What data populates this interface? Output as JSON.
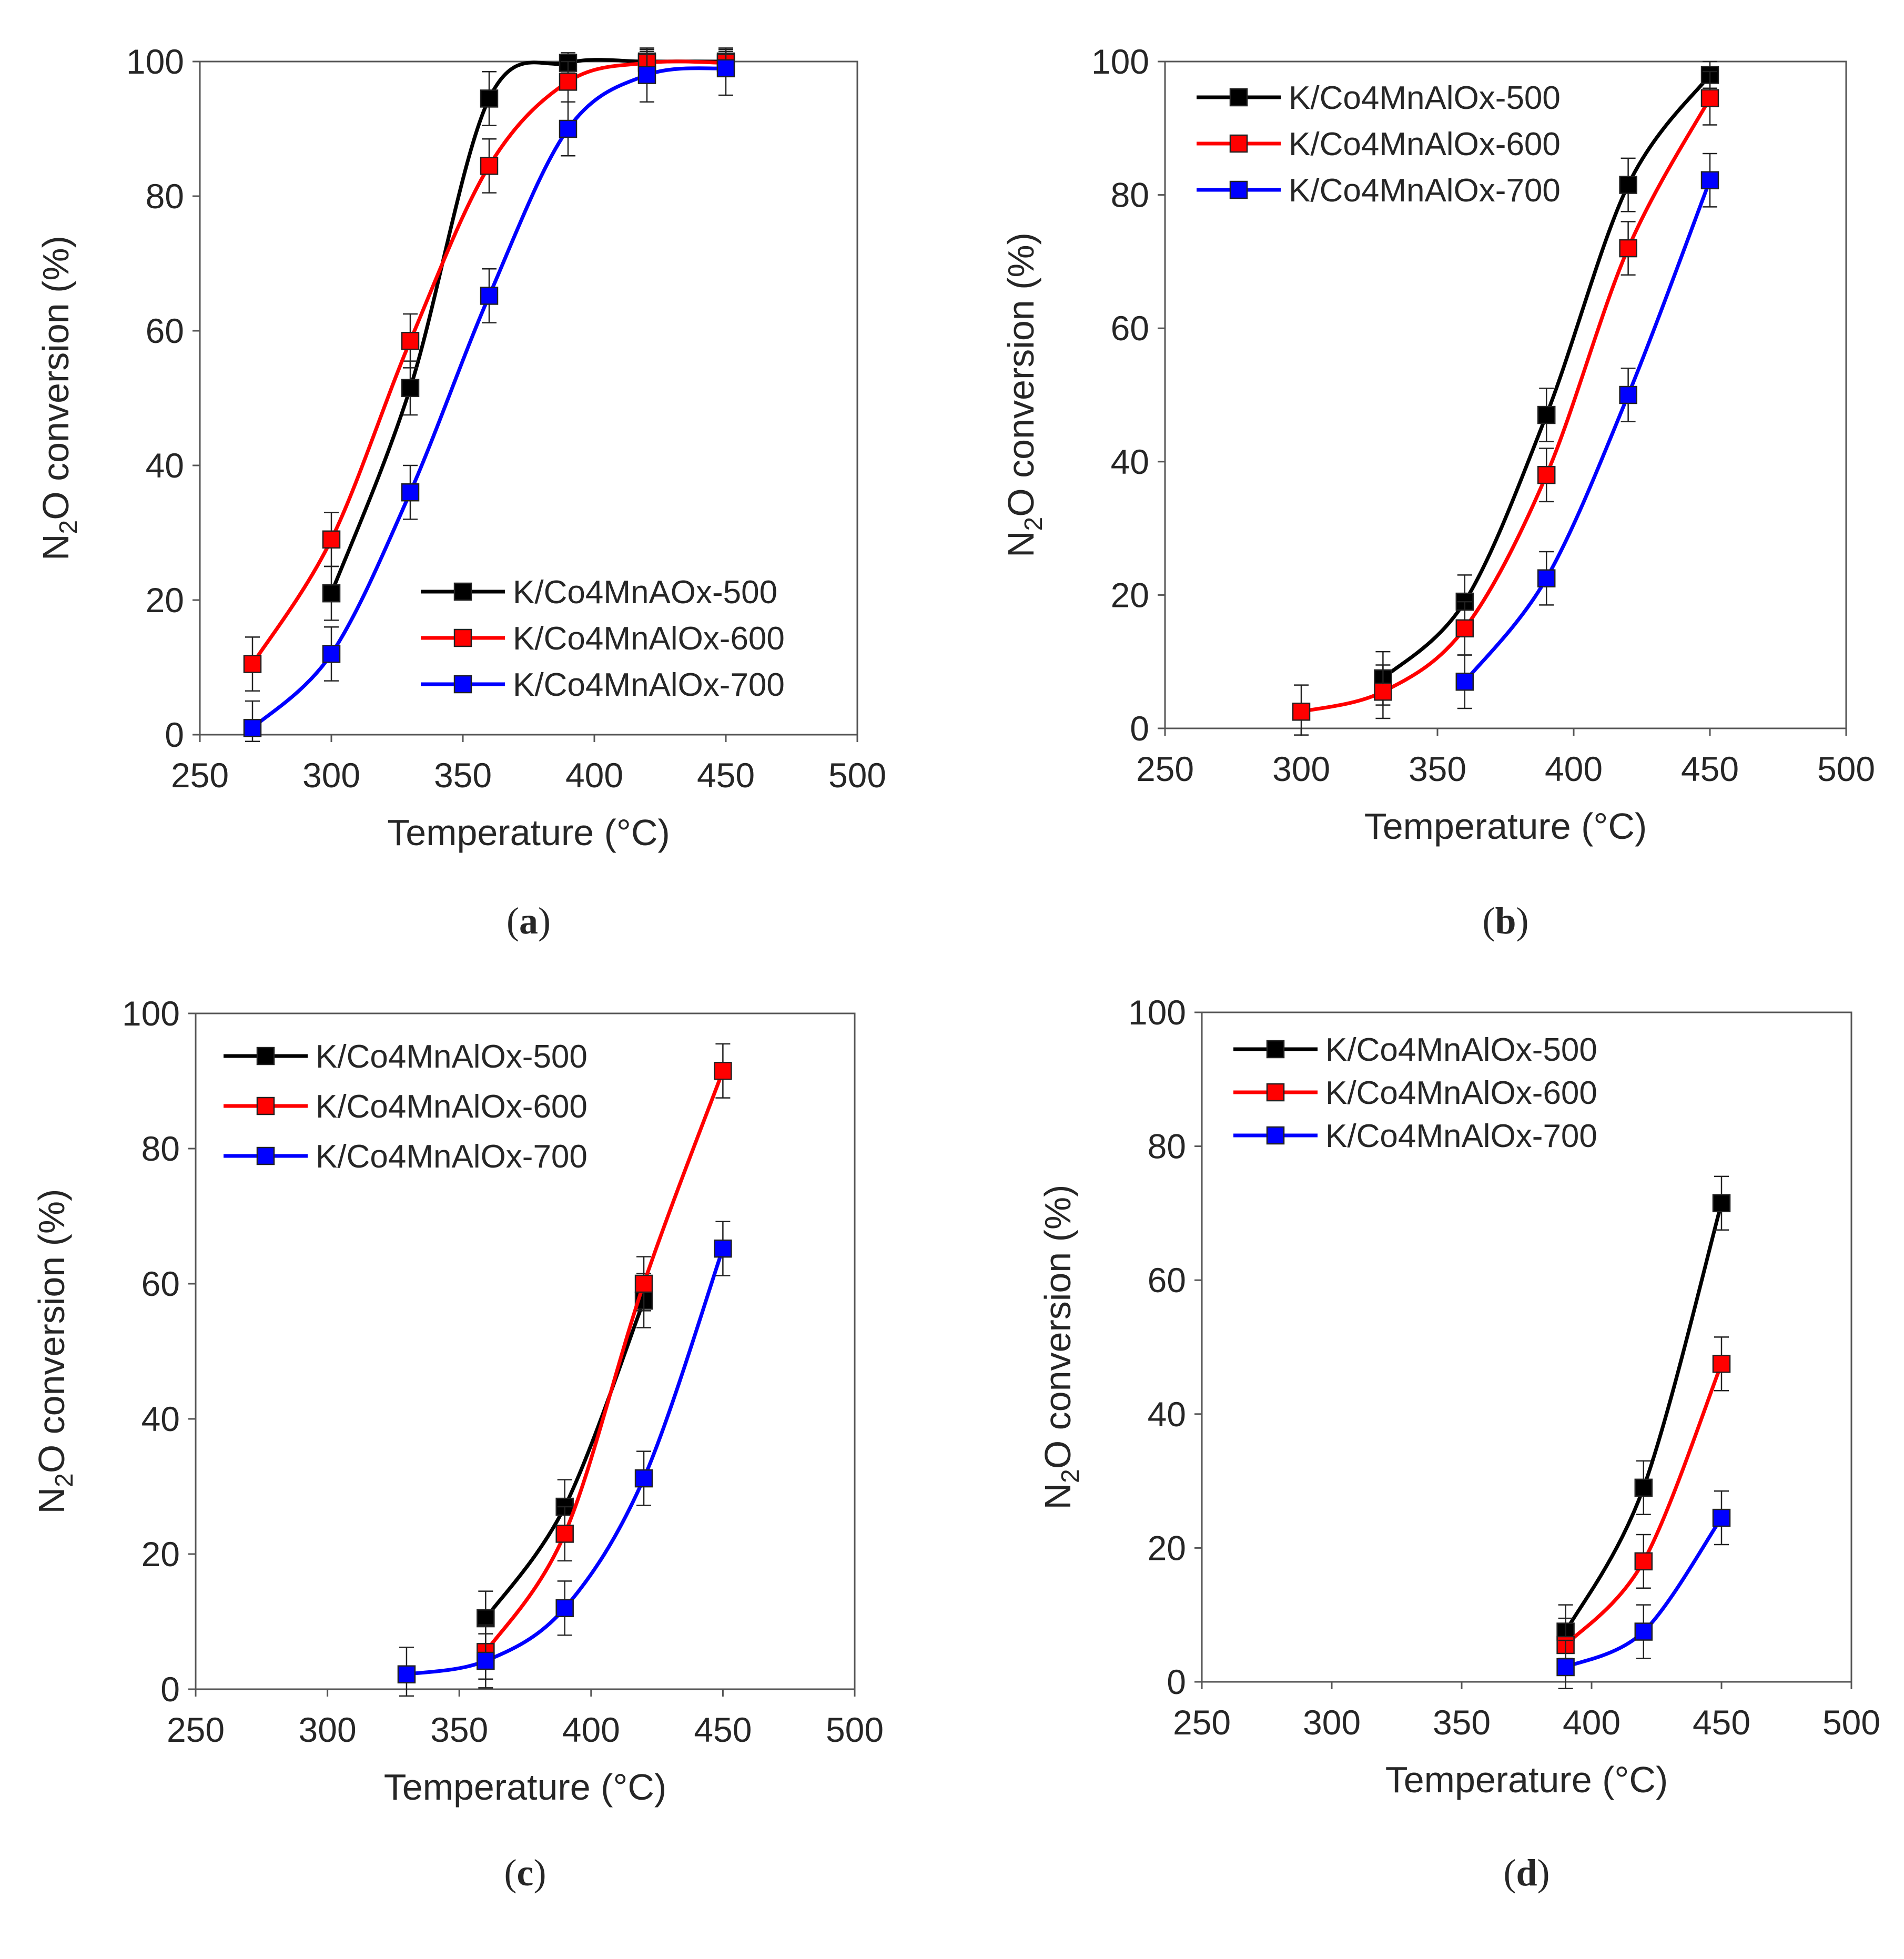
{
  "chart_data": [
    {
      "panel": "a",
      "type": "line",
      "xlabel": "Temperature (°C)",
      "ylabel_main": "N",
      "ylabel_sub": "2",
      "ylabel_rest": "O conversion (%)",
      "xlim": [
        250,
        500
      ],
      "ylim": [
        0,
        100
      ],
      "xticks": [
        250,
        300,
        350,
        400,
        450,
        500
      ],
      "yticks": [
        0,
        20,
        40,
        60,
        80,
        100
      ],
      "legend_position": "lower-right",
      "series": [
        {
          "name": "K/Co4MnAOx-500",
          "color": "#000000",
          "x": [
            300,
            330,
            360,
            390,
            420,
            450
          ],
          "y": [
            21,
            51.5,
            94.5,
            99.8,
            100,
            100
          ],
          "err": [
            4,
            4,
            4,
            1.5,
            1.5,
            1.5
          ]
        },
        {
          "name": "K/Co4MnAlOx-600",
          "color": "#ff0000",
          "x": [
            270,
            300,
            330,
            360,
            390,
            420,
            450
          ],
          "y": [
            10.5,
            29,
            58.5,
            84.5,
            97,
            99.8,
            99.8
          ],
          "err": [
            4,
            4,
            4,
            4,
            3,
            2,
            2
          ]
        },
        {
          "name": "K/Co4MnAlOx-700",
          "color": "#0000ff",
          "x": [
            270,
            300,
            330,
            360,
            390,
            420,
            450
          ],
          "y": [
            1,
            12,
            36,
            65.2,
            90,
            98,
            99
          ],
          "err": [
            4,
            4,
            4,
            4,
            4,
            4,
            4
          ]
        }
      ]
    },
    {
      "panel": "b",
      "type": "line",
      "xlabel": "Temperature (°C)",
      "ylabel_main": "N",
      "ylabel_sub": "2",
      "ylabel_rest": "O conversion (%)",
      "xlim": [
        250,
        500
      ],
      "ylim": [
        0,
        100
      ],
      "xticks": [
        250,
        300,
        350,
        400,
        450,
        500
      ],
      "yticks": [
        0,
        20,
        40,
        60,
        80,
        100
      ],
      "legend_position": "top-left",
      "series": [
        {
          "name": "K/Co4MnAlOx-500",
          "color": "#000000",
          "x": [
            330,
            360,
            390,
            420,
            450
          ],
          "y": [
            7.5,
            19,
            47,
            81.5,
            98
          ],
          "err": [
            4,
            4,
            4,
            4,
            2
          ]
        },
        {
          "name": "K/Co4MnAlOx-600",
          "color": "#ff0000",
          "x": [
            300,
            330,
            360,
            390,
            420,
            450
          ],
          "y": [
            2.5,
            5.5,
            15,
            38,
            72,
            94.5
          ],
          "err": [
            4,
            4,
            4,
            4,
            4,
            4
          ]
        },
        {
          "name": "K/Co4MnAlOx-700",
          "color": "#0000ff",
          "x": [
            360,
            390,
            420,
            450
          ],
          "y": [
            7,
            22.5,
            50,
            82.2
          ],
          "err": [
            4,
            4,
            4,
            4
          ]
        }
      ]
    },
    {
      "panel": "c",
      "type": "line",
      "xlabel": "Temperature (°C)",
      "ylabel_main": "N",
      "ylabel_sub": "2",
      "ylabel_rest": "O conversion (%)",
      "xlim": [
        250,
        500
      ],
      "ylim": [
        0,
        100
      ],
      "xticks": [
        250,
        300,
        350,
        400,
        450,
        500
      ],
      "yticks": [
        0,
        20,
        40,
        60,
        80,
        100
      ],
      "legend_position": "top-left",
      "series": [
        {
          "name": "K/Co4MnAlOx-500",
          "color": "#000000",
          "x": [
            360,
            390,
            420
          ],
          "y": [
            10.5,
            27,
            57.5
          ],
          "err": [
            4,
            4,
            4
          ]
        },
        {
          "name": "K/Co4MnAlOx-600",
          "color": "#ff0000",
          "x": [
            360,
            390,
            420,
            450
          ],
          "y": [
            5.5,
            23,
            60,
            91.5
          ],
          "err": [
            4,
            4,
            4,
            4
          ]
        },
        {
          "name": "K/Co4MnAlOx-700",
          "color": "#0000ff",
          "x": [
            330,
            360,
            390,
            420,
            450
          ],
          "y": [
            2.2,
            4.2,
            12,
            31.2,
            65.2
          ],
          "err": [
            4,
            4,
            4,
            4,
            4
          ]
        }
      ]
    },
    {
      "panel": "d",
      "type": "line",
      "xlabel": "Temperature (°C)",
      "ylabel_main": "N",
      "ylabel_sub": "2",
      "ylabel_rest": "O conversion (%)",
      "xlim": [
        250,
        500
      ],
      "ylim": [
        0,
        100
      ],
      "xticks": [
        250,
        300,
        350,
        400,
        450,
        500
      ],
      "yticks": [
        0,
        20,
        40,
        60,
        80,
        100
      ],
      "legend_position": "top-left",
      "series": [
        {
          "name": "K/Co4MnAlOx-500",
          "color": "#000000",
          "x": [
            390,
            420,
            450
          ],
          "y": [
            7.5,
            29,
            71.5
          ],
          "err": [
            4,
            4,
            4
          ]
        },
        {
          "name": "K/Co4MnAlOx-600",
          "color": "#ff0000",
          "x": [
            390,
            420,
            450
          ],
          "y": [
            5.5,
            18,
            47.5
          ],
          "err": [
            4,
            4,
            4
          ]
        },
        {
          "name": "K/Co4MnAlOx-700",
          "color": "#0000ff",
          "x": [
            390,
            420,
            450
          ],
          "y": [
            2.2,
            7.5,
            24.5
          ],
          "err": [
            4,
            4,
            4
          ]
        }
      ]
    }
  ]
}
